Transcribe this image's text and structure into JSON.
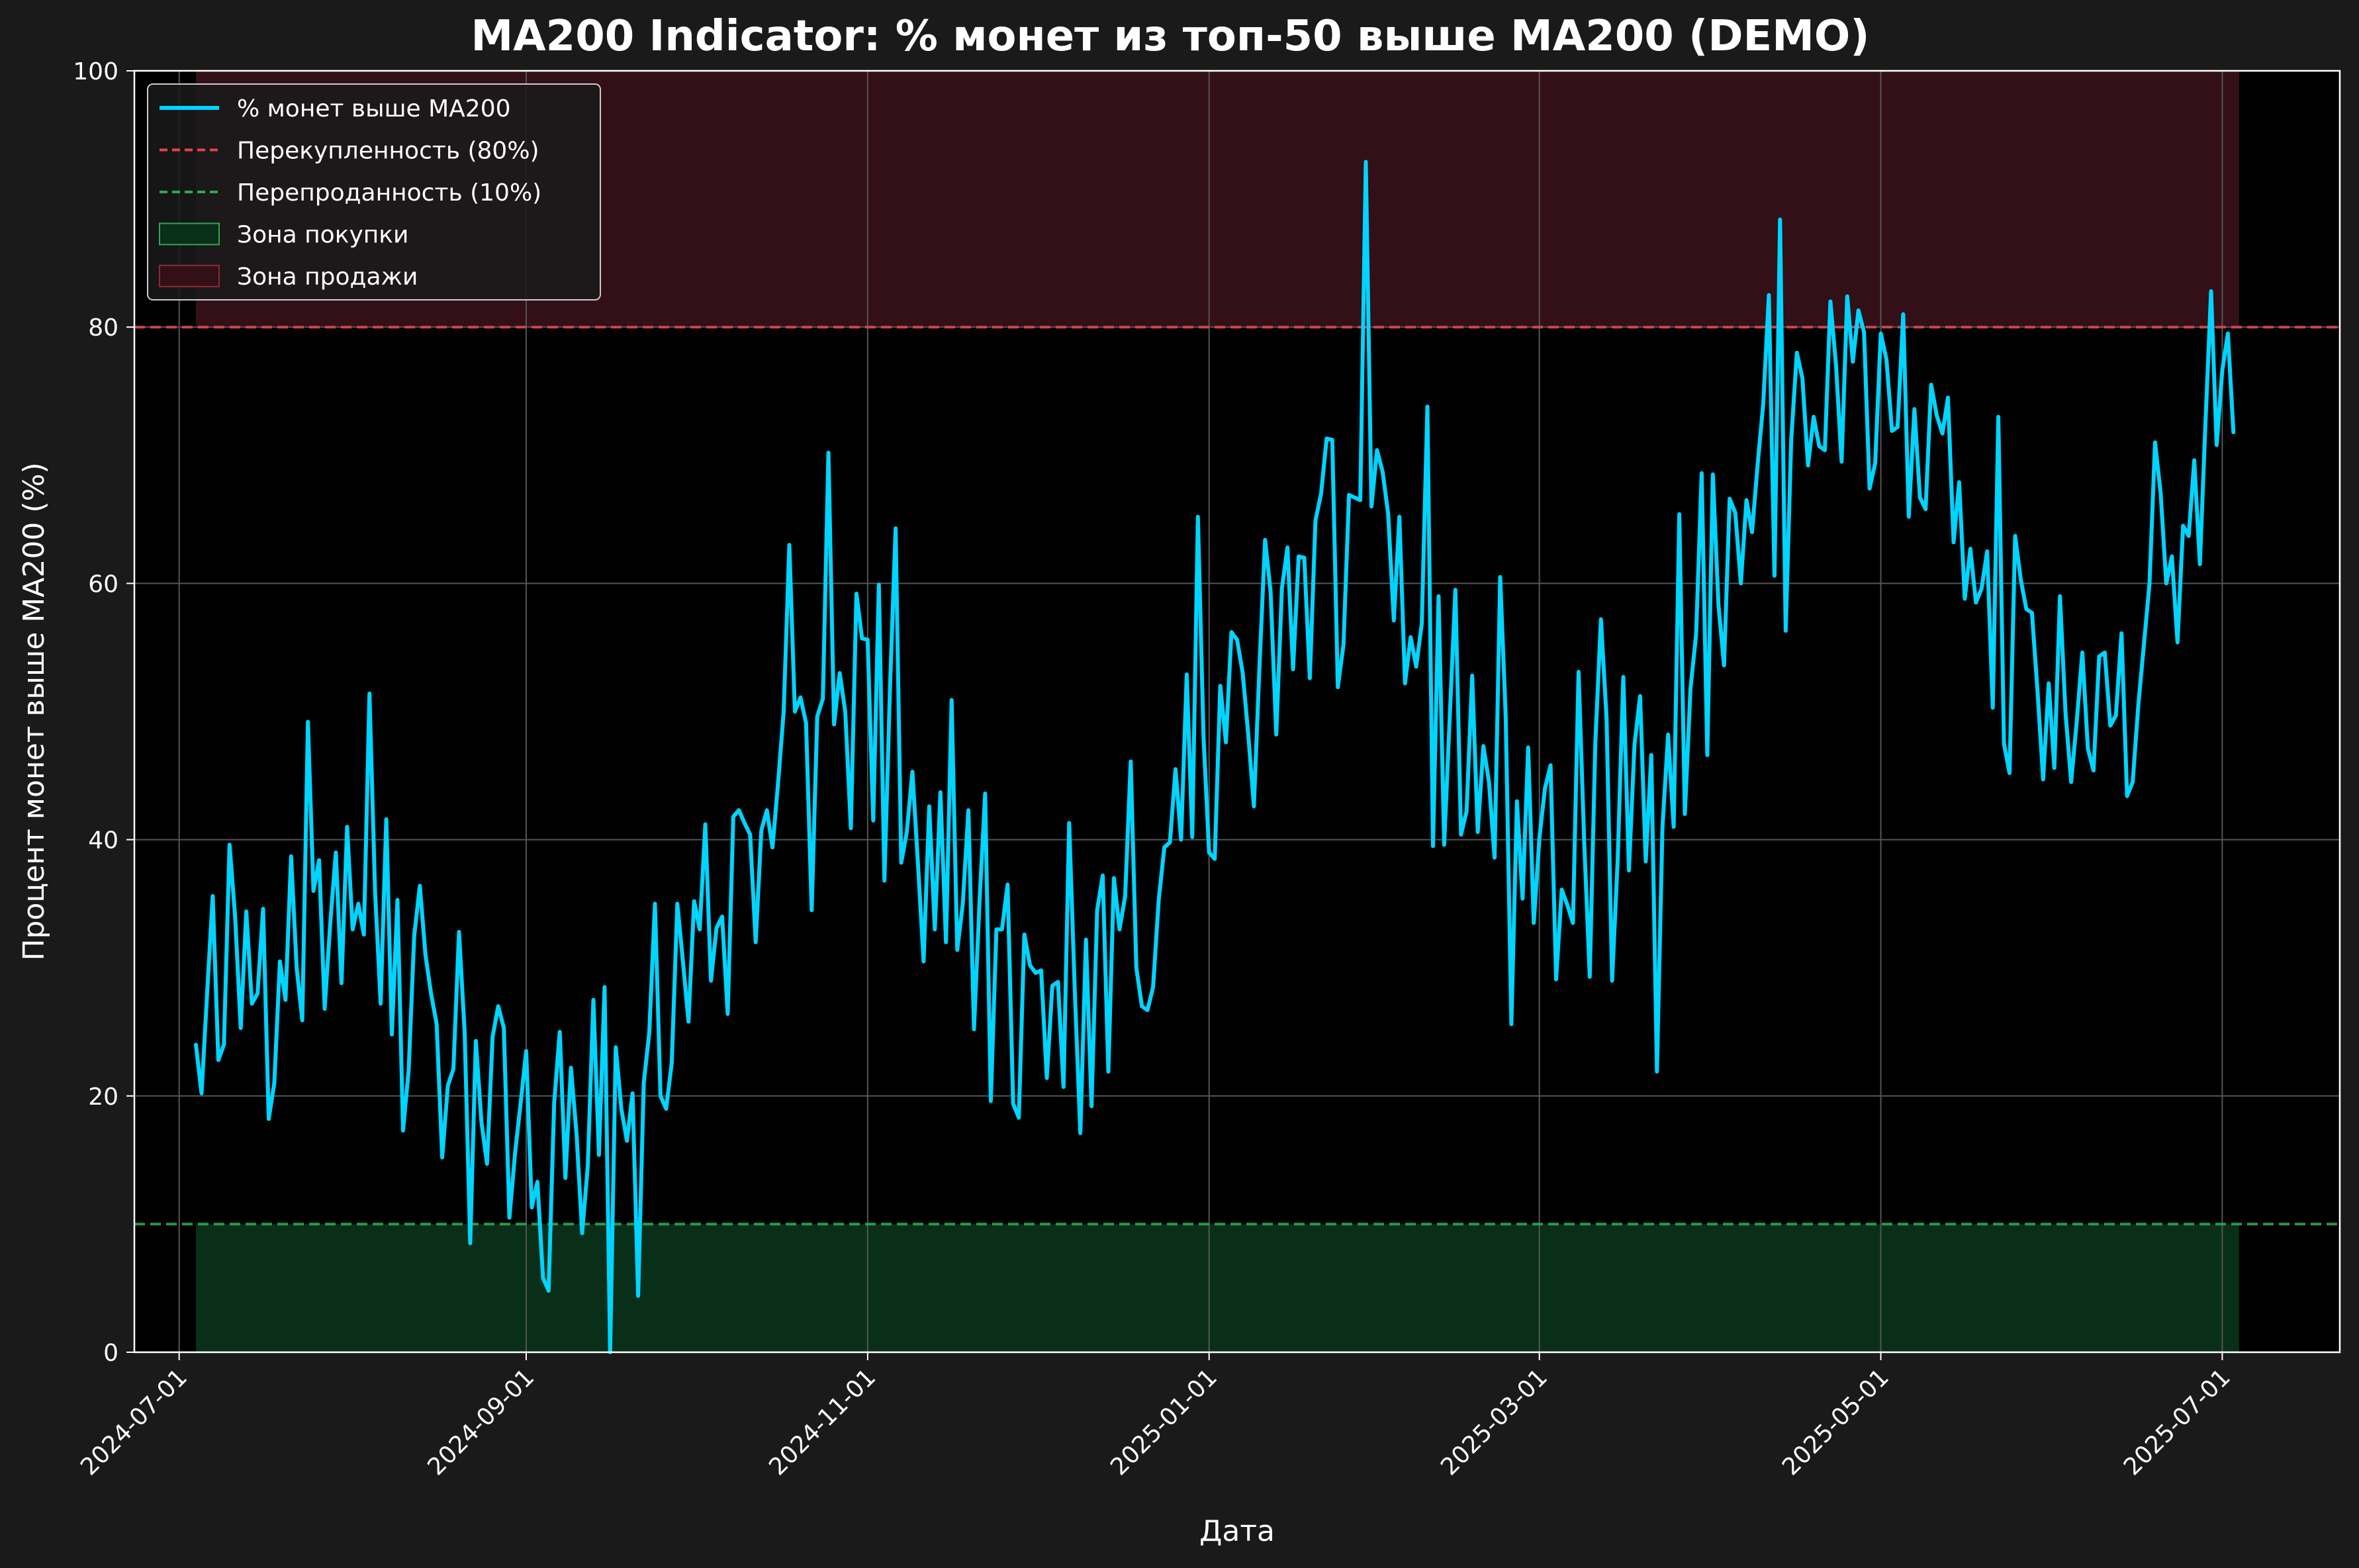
{
  "chart_data": {
    "type": "line",
    "title": "MA200 Indicator: % монет из топ-50 выше MA200 (DEMO)",
    "xlabel": "Дата",
    "ylabel": "Процент монет выше MA200 (%)",
    "ylim": [
      0,
      100
    ],
    "yticks": [
      0,
      20,
      40,
      60,
      80,
      100
    ],
    "xlim": [
      "2024-06-23",
      "2025-07-22"
    ],
    "xticks": [
      "2024-07-01",
      "2024-09-01",
      "2024-11-01",
      "2025-01-01",
      "2025-03-01",
      "2025-05-01",
      "2025-07-01"
    ],
    "grid": true,
    "legend_position": "top-left",
    "series": [
      {
        "name": "% монет выше MA200",
        "color": "#00d4ff",
        "x_start": "2024-07-04",
        "x_step_days": 1,
        "values": [
          24,
          20.2,
          28,
          35.6,
          22.8,
          24,
          39.6,
          34,
          25.3,
          34.4,
          27.2,
          28,
          34.6,
          18.2,
          21,
          30.5,
          27.5,
          38.7,
          30,
          25.9,
          49.2,
          36,
          38.4,
          26.8,
          33.5,
          39,
          28.8,
          41,
          33,
          35,
          32.6,
          51.4,
          36,
          27.2,
          41.6,
          24.8,
          35.3,
          17.3,
          22,
          32.5,
          36.4,
          31,
          28,
          25.6,
          15.2,
          20.8,
          22.1,
          32.8,
          25,
          8.5,
          24.3,
          18,
          14.7,
          24.6,
          27,
          25.3,
          10.5,
          15.5,
          19.4,
          23.5,
          11.3,
          13.3,
          5.8,
          4.8,
          19.5,
          25,
          13.6,
          22.2,
          17,
          9.3,
          14.5,
          27.5,
          15.4,
          28.5,
          0,
          23.8,
          19,
          16.5,
          20.2,
          4.4,
          21,
          25,
          35,
          20,
          19,
          22.6,
          35,
          30.5,
          25.8,
          35.2,
          33,
          41.2,
          29,
          33.1,
          34,
          26.4,
          41.8,
          42.3,
          41.3,
          40.4,
          32,
          40.7,
          42.3,
          39.4,
          44.4,
          50,
          63,
          50,
          51.1,
          49.1,
          34.5,
          49.6,
          51,
          70.2,
          49,
          53,
          50,
          40.9,
          59.2,
          55.7,
          55.6,
          41.5,
          59.9,
          36.8,
          52,
          64.3,
          38.2,
          40.6,
          45.3,
          38,
          30.5,
          42.6,
          33,
          43.7,
          32,
          50.9,
          31.4,
          35,
          42.3,
          25.2,
          35.3,
          43.6,
          19.6,
          33,
          33,
          36.5,
          19.4,
          18.3,
          32.6,
          30.2,
          29.6,
          29.8,
          21.4,
          28.6,
          28.9,
          20.7,
          41.3,
          28.2,
          17.1,
          32.2,
          19.2,
          34.5,
          37.2,
          21.9,
          37,
          33,
          35.6,
          46.1,
          30,
          27,
          26.7,
          28.5,
          35.3,
          39.4,
          39.8,
          45.5,
          40,
          52.9,
          40.2,
          65.2,
          48,
          39,
          38.5,
          52,
          47.6,
          56.2,
          55.6,
          53,
          48.2,
          42.6,
          53.5,
          63.4,
          59.3,
          48.2,
          59.6,
          62.8,
          53.3,
          62.1,
          62,
          52.6,
          64.9,
          67,
          71.3,
          71.2,
          51.9,
          55.2,
          66.9,
          66.7,
          66.5,
          92.9,
          66,
          70.4,
          68.7,
          65.4,
          57.1,
          65.2,
          52.2,
          55.8,
          53.5,
          56.9,
          73.8,
          39.5,
          59,
          39.6,
          49.7,
          59.5,
          40.4,
          42.2,
          52.8,
          40.6,
          47.3,
          44.5,
          38.6,
          60.5,
          49.5,
          25.6,
          43,
          35.4,
          47.2,
          33.5,
          40.1,
          44,
          45.8,
          29.1,
          36.1,
          34.9,
          33.5,
          53.1,
          40,
          29.3,
          47.5,
          57.2,
          49.5,
          29,
          38.5,
          52.7,
          37.6,
          47.4,
          51.2,
          38.3,
          46.6,
          21.9,
          41,
          48.2,
          41,
          65.4,
          42,
          51.8,
          56,
          68.6,
          46.6,
          68.5,
          58.3,
          53.6,
          66.6,
          65.5,
          60,
          66.5,
          64,
          69.3,
          74,
          82.5,
          60.6,
          88.4,
          56.3,
          71.2,
          78,
          76,
          69.2,
          73,
          70.7,
          70.4,
          82,
          77,
          69.5,
          82.4,
          77.3,
          81.3,
          79.6,
          67.4,
          69.4,
          79.5,
          77.5,
          71.9,
          72.2,
          81,
          65.2,
          73.6,
          66.7,
          65.8,
          75.5,
          73.1,
          71.7,
          74.5,
          63.2,
          67.9,
          58.8,
          62.7,
          58.5,
          59.6,
          62.5,
          50.3,
          73,
          47.5,
          45.2,
          63.7,
          60.3,
          58,
          57.7,
          51.6,
          44.7,
          52.2,
          45.6,
          59,
          49.9,
          44.5,
          49.2,
          54.6,
          47.1,
          45.4,
          54.3,
          54.6,
          48.9,
          49.7,
          56.1,
          43.4,
          44.5,
          50.5,
          55.2,
          60,
          71,
          67,
          60,
          62.1,
          55.4,
          64.5,
          63.7,
          69.6,
          61.5,
          72.5,
          82.8,
          70.8,
          76.6,
          79.5,
          71.8
        ]
      },
      {
        "name": "Перекупленность (80%)",
        "color": "#e0454f",
        "style": "dashed",
        "value": 80
      },
      {
        "name": "Перепроданность (10%)",
        "color": "#2ea84f",
        "style": "dashed",
        "value": 10
      }
    ],
    "zones": [
      {
        "name": "Зона покупки",
        "color": "#0a2f18",
        "from": 0,
        "to": 10,
        "x_from": "2024-07-04",
        "x_to": "2025-07-04"
      },
      {
        "name": "Зона продажи",
        "color": "#331017",
        "from": 80,
        "to": 100,
        "x_from": "2024-07-04",
        "x_to": "2025-07-04"
      }
    ]
  }
}
